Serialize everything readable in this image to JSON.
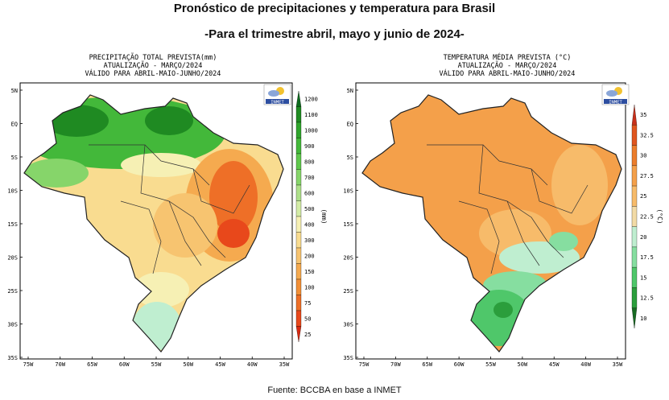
{
  "title": "Pronóstico de precipitaciones y temperatura para Brasil",
  "subtitle": "-Para el trimestre abril, mayo y junio de 2024-",
  "source": "Fuente: BCCBA en base a INMET",
  "logo_text": "INMET",
  "lat_labels": [
    "5N",
    "EQ",
    "5S",
    "10S",
    "15S",
    "20S",
    "25S",
    "30S",
    "35S"
  ],
  "lon_labels": [
    "75W",
    "70W",
    "65W",
    "60W",
    "55W",
    "50W",
    "45W",
    "40W",
    "35W"
  ],
  "left_map": {
    "header": [
      "PRECIPITAÇÃO TOTAL PREVISTA(mm)",
      "ATUALIZAÇÃO - MARÇO/2024",
      "VÁLIDO PARA ABRIL-MAIO-JUNHO/2024"
    ],
    "legend_unit": "(mm)",
    "legend_ticks": [
      "1200",
      "1100",
      "1000",
      "900",
      "800",
      "700",
      "600",
      "500",
      "400",
      "300",
      "200",
      "150",
      "100",
      "75",
      "50",
      "25"
    ],
    "legend_colors": [
      "#0e6b1e",
      "#1f8a22",
      "#2fa42c",
      "#43b83a",
      "#5fc84c",
      "#86d56a",
      "#aee08a",
      "#d3eca6",
      "#f6f0b4",
      "#f9dc90",
      "#f7c470",
      "#f5aa4f",
      "#f28f36",
      "#ee6f27",
      "#e8481b",
      "#d92a12"
    ]
  },
  "right_map": {
    "header": [
      "TEMPERATURA MÉDIA PREVISTA (°C)",
      "ATUALIZAÇÃO - MARÇO/2024",
      "VÁLIDO PARA ABRIL-MAIO-JUNHO/2024"
    ],
    "legend_unit": "(°C)",
    "legend_ticks": [
      "35",
      "32.5",
      "30",
      "27.5",
      "25",
      "22.5",
      "20",
      "17.5",
      "15",
      "12.5",
      "10"
    ],
    "legend_colors": [
      "#c8301a",
      "#e0561f",
      "#ec7d2c",
      "#f4a04a",
      "#f7bb6a",
      "#f3dba6",
      "#bfeed0",
      "#86dea0",
      "#4fc76a",
      "#2b9e3c",
      "#176b22"
    ]
  }
}
